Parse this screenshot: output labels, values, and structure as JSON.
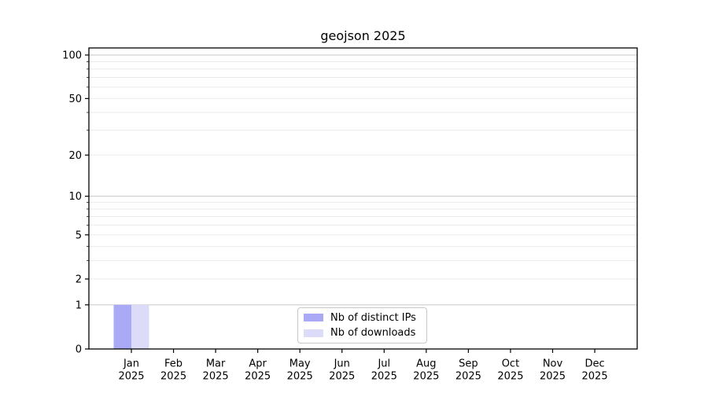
{
  "chart_data": {
    "type": "bar",
    "title": "geojson 2025",
    "categories": [
      "Jan",
      "Feb",
      "Mar",
      "Apr",
      "May",
      "Jun",
      "Jul",
      "Aug",
      "Sep",
      "Oct",
      "Nov",
      "Dec"
    ],
    "year": "2025",
    "series": [
      {
        "name": "Nb of distinct IPs",
        "color": "#a9a9f5",
        "values": [
          1,
          0,
          0,
          0,
          0,
          0,
          0,
          0,
          0,
          0,
          0,
          0
        ]
      },
      {
        "name": "Nb of downloads",
        "color": "#dcdcf8",
        "values": [
          1,
          0,
          0,
          0,
          0,
          0,
          0,
          0,
          0,
          0,
          0,
          0
        ]
      }
    ],
    "xlabel": "",
    "ylabel": "",
    "yscale": "log10(1+y)",
    "ylim": [
      0,
      112
    ],
    "y_labeled_ticks": [
      0,
      1,
      2,
      5,
      10,
      20,
      50,
      100
    ],
    "y_major_gridlines": [
      1,
      10,
      100
    ],
    "y_minor_gridlines": [
      2,
      3,
      4,
      5,
      6,
      7,
      8,
      9,
      20,
      30,
      40,
      50,
      60,
      70,
      80,
      90
    ],
    "grid": "horizontal",
    "legend_position": "lower center",
    "colors": {
      "bar_distinct_ips": "#a9a9f5",
      "bar_downloads": "#dcdcf8",
      "major_grid": "#c6c6c6",
      "minor_grid": "#ebebeb",
      "axis_frame": "#000000",
      "text": "#000000",
      "legend_border": "#c8c8c8",
      "background": "#ffffff"
    }
  }
}
